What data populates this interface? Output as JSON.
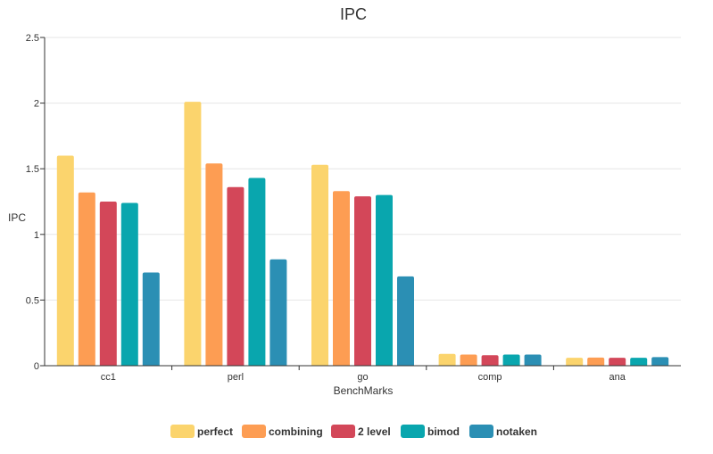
{
  "chart_data": {
    "type": "bar",
    "title": "IPC",
    "xlabel": "BenchMarks",
    "ylabel": "IPC",
    "ylim": [
      0,
      2.5
    ],
    "yticks": [
      "0",
      "0.5",
      "1",
      "1.5",
      "2",
      "2.5"
    ],
    "categories": [
      "cc1",
      "perl",
      "go",
      "comp",
      "ana"
    ],
    "grid": true,
    "legend_position": "bottom",
    "series": [
      {
        "name": "perfect",
        "color": "#fbd46d",
        "values": [
          1.6,
          2.01,
          1.53,
          0.09,
          0.06
        ]
      },
      {
        "name": "combining",
        "color": "#fd9d53",
        "values": [
          1.32,
          1.54,
          1.33,
          0.085,
          0.062
        ]
      },
      {
        "name": "2 level",
        "color": "#d34759",
        "values": [
          1.25,
          1.36,
          1.29,
          0.08,
          0.06
        ]
      },
      {
        "name": "bimod",
        "color": "#09a6ae",
        "values": [
          1.24,
          1.43,
          1.3,
          0.085,
          0.06
        ]
      },
      {
        "name": "notaken",
        "color": "#2b8fb4",
        "values": [
          0.71,
          0.81,
          0.68,
          0.085,
          0.065
        ]
      }
    ]
  }
}
